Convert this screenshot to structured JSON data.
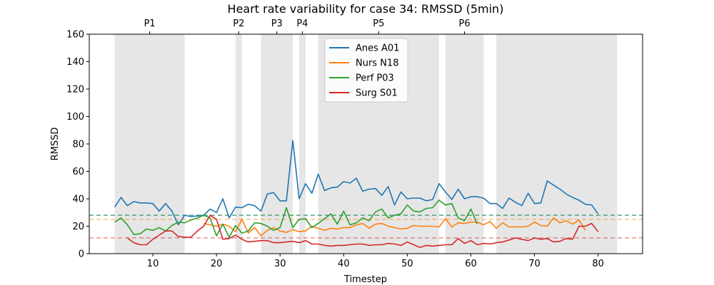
{
  "chart_data": {
    "type": "line",
    "title": "Heart rate variability for case 34: RMSSD (5min)",
    "xlabel": "Timestep",
    "ylabel": "RMSSD",
    "xlim": [
      0,
      87
    ],
    "ylim": [
      0,
      160
    ],
    "xticks": [
      10,
      20,
      30,
      40,
      50,
      60,
      70,
      80
    ],
    "yticks": [
      0,
      20,
      40,
      60,
      80,
      100,
      120,
      140,
      160
    ],
    "grid": false,
    "legend_position": "top-center",
    "phases": [
      {
        "label": "P1",
        "start": 4,
        "end": 15
      },
      {
        "label": "P2",
        "start": 23,
        "end": 24
      },
      {
        "label": "P3",
        "start": 27,
        "end": 32
      },
      {
        "label": "P4",
        "start": 33,
        "end": 34
      },
      {
        "label": "P5",
        "start": 36,
        "end": 55
      },
      {
        "label": "P6",
        "start": 56,
        "end": 62
      },
      {
        "label": "",
        "start": 64,
        "end": 77
      },
      {
        "label": "",
        "start": 77,
        "end": 83
      }
    ],
    "baselines": [
      {
        "series": "Anes A01",
        "value": 28,
        "color": "#1f77b4"
      },
      {
        "series": "Nurs N18",
        "value": 25,
        "color": "#ff7f0e"
      },
      {
        "series": "Perf P03",
        "value": 28,
        "color": "#2ca02c"
      },
      {
        "series": "Surg S01",
        "value": 11.5,
        "color": "#d62728"
      }
    ],
    "series": [
      {
        "name": "Anes A01",
        "color": "#1f77b4",
        "x": [
          4,
          5,
          6,
          7,
          8,
          9,
          10,
          11,
          12,
          13,
          14,
          15,
          16,
          17,
          18,
          19,
          20,
          21,
          22,
          23,
          24,
          25,
          26,
          27,
          28,
          29,
          30,
          31,
          32,
          33,
          34,
          35,
          36,
          37,
          38,
          39,
          40,
          41,
          42,
          43,
          44,
          45,
          46,
          47,
          48,
          49,
          50,
          51,
          52,
          53,
          54,
          55,
          56,
          57,
          58,
          59,
          60,
          61,
          62,
          63,
          64,
          65,
          66,
          67,
          68,
          69,
          70,
          71,
          72,
          73,
          74,
          75,
          76,
          77,
          78,
          79,
          80
        ],
        "values": [
          34,
          41,
          35,
          38,
          37,
          37,
          36.5,
          31,
          36.5,
          31,
          21,
          28,
          27,
          27.5,
          28,
          32.5,
          30,
          40,
          26,
          34,
          33.5,
          36,
          35,
          31,
          43.5,
          44.5,
          38.5,
          38.5,
          82.5,
          40,
          51,
          44,
          58,
          46,
          48,
          48.5,
          52.5,
          51.5,
          55,
          45.5,
          47,
          47.5,
          42.5,
          49,
          35.5,
          45,
          40,
          40.5,
          40.5,
          38.5,
          39.5,
          51,
          45,
          39.5,
          47,
          40,
          41.5,
          41.5,
          40.5,
          36.5,
          36.5,
          33,
          40.5,
          37.5,
          35,
          44,
          36.5,
          37,
          53,
          50,
          47,
          43.5,
          41,
          39,
          36,
          35.5,
          29
        ]
      },
      {
        "name": "Nurs N18",
        "color": "#ff7f0e",
        "x": [
          18,
          19,
          20,
          21,
          22,
          23,
          24,
          25,
          26,
          27,
          28,
          29,
          30,
          31,
          32,
          33,
          34,
          35,
          36,
          37,
          38,
          39,
          40,
          41,
          42,
          43,
          44,
          45,
          46,
          47,
          48,
          49,
          50,
          51,
          52,
          53,
          54,
          55,
          56,
          57,
          58,
          59,
          60,
          61,
          62,
          63,
          64,
          65,
          66,
          67,
          68,
          69,
          70,
          71,
          72,
          73,
          74,
          75,
          76,
          77,
          78
        ],
        "values": [
          22,
          21,
          20,
          21.5,
          20,
          16,
          25,
          15,
          19,
          13,
          17,
          19,
          16.5,
          15.5,
          17.5,
          16,
          16.5,
          20,
          18.5,
          17,
          18.5,
          18,
          19,
          19,
          21,
          22,
          18.5,
          21.5,
          22,
          20,
          19,
          18,
          18.5,
          20.5,
          20,
          20,
          20,
          19.5,
          25.5,
          19.5,
          22.5,
          22,
          23,
          23,
          21,
          23.5,
          18.5,
          22.5,
          19.5,
          19.5,
          19.5,
          20,
          23,
          20.5,
          20,
          26,
          22.5,
          24,
          21.5,
          24.5,
          17
        ]
      },
      {
        "name": "Perf P03",
        "color": "#2ca02c",
        "x": [
          4,
          5,
          6,
          7,
          8,
          9,
          10,
          11,
          12,
          13,
          14,
          15,
          16,
          17,
          18,
          19,
          20,
          21,
          22,
          23,
          24,
          25,
          26,
          27,
          28,
          29,
          30,
          31,
          32,
          33,
          34,
          35,
          36,
          37,
          38,
          39,
          40,
          41,
          42,
          43,
          44,
          45,
          46,
          47,
          48,
          49,
          50,
          51,
          52,
          53,
          54,
          55,
          56,
          57,
          58,
          59,
          60,
          61
        ],
        "values": [
          23,
          26,
          21,
          14,
          14.5,
          18,
          17,
          19,
          16.5,
          20.5,
          23,
          22.5,
          24.5,
          26,
          28,
          26,
          13,
          21.5,
          12,
          20.5,
          15,
          16.5,
          22.5,
          22,
          20,
          17,
          19,
          33.5,
          19,
          25,
          25.5,
          19,
          22,
          25.5,
          29,
          21.5,
          31,
          21,
          22.5,
          26,
          24,
          30.5,
          32.5,
          26,
          28,
          29,
          35.5,
          31,
          30.5,
          33,
          33.5,
          39,
          35.5,
          36.5,
          26,
          24,
          32.5,
          21.5
        ]
      },
      {
        "name": "Surg S01",
        "color": "#d62728",
        "x": [
          6,
          7,
          8,
          9,
          10,
          11,
          12,
          13,
          14,
          15,
          16,
          17,
          18,
          19,
          20,
          21,
          22,
          23,
          24,
          25,
          26,
          27,
          28,
          29,
          30,
          31,
          32,
          33,
          34,
          35,
          36,
          37,
          38,
          39,
          40,
          41,
          42,
          43,
          44,
          45,
          46,
          47,
          48,
          49,
          50,
          51,
          52,
          53,
          54,
          55,
          56,
          57,
          58,
          59,
          60,
          61,
          62,
          63,
          64,
          65,
          66,
          67,
          68,
          69,
          70,
          71,
          72,
          73,
          74,
          75,
          76,
          77,
          78,
          79,
          80
        ],
        "values": [
          11.5,
          8,
          6.5,
          6.5,
          10.5,
          13.5,
          16.5,
          16.5,
          12.5,
          12,
          12,
          16.5,
          20,
          28,
          25,
          10.5,
          11,
          13.5,
          10.5,
          8.5,
          9,
          9.5,
          9.5,
          8,
          8,
          8.5,
          9,
          8,
          9.5,
          7,
          7,
          6,
          5.5,
          6,
          6,
          6.5,
          7,
          7,
          6,
          6.5,
          6.5,
          7.5,
          7,
          6,
          8.5,
          6.5,
          4.5,
          6,
          5.5,
          6,
          6.5,
          6.5,
          11,
          7.5,
          9.5,
          6.5,
          7.5,
          7,
          8,
          8.5,
          10,
          11.5,
          10.5,
          9.5,
          11.5,
          10.5,
          11,
          8.5,
          9,
          11,
          10.5,
          20,
          20,
          22,
          16
        ]
      }
    ]
  }
}
